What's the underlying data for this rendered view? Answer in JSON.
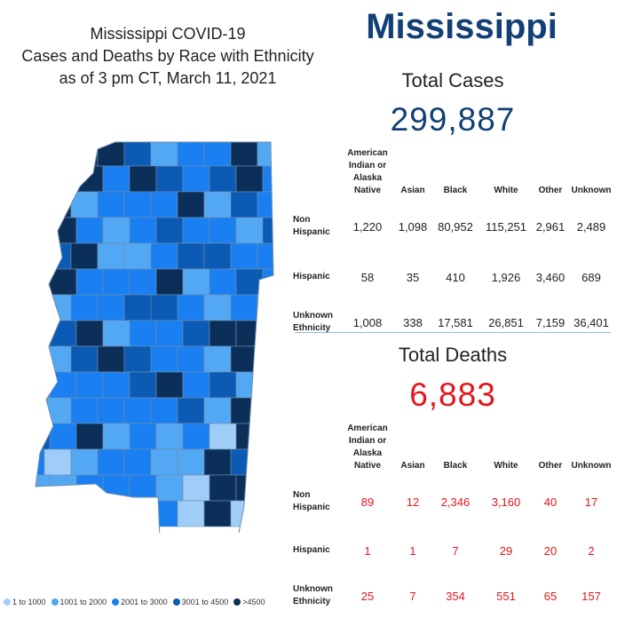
{
  "title": {
    "line1": "Mississippi COVID-19",
    "line2": "Cases and Deaths by Race with Ethnicity",
    "line3": "as of 3 pm CT, March 11, 2021"
  },
  "state_name": "Mississippi",
  "cases": {
    "label": "Total Cases",
    "total": "299,887",
    "columns": [
      "American Indian or Alaska Native",
      "Asian",
      "Black",
      "White",
      "Other",
      "Unknown"
    ],
    "rows": [
      {
        "label": "Non Hispanic",
        "values": [
          "1,220",
          "1,098",
          "80,952",
          "115,251",
          "2,961",
          "2,489"
        ]
      },
      {
        "label": "Hispanic",
        "values": [
          "58",
          "35",
          "410",
          "1,926",
          "3,460",
          "689"
        ]
      },
      {
        "label": "Unknown Ethnicity",
        "values": [
          "1,008",
          "338",
          "17,581",
          "26,851",
          "7,159",
          "36,401"
        ]
      }
    ]
  },
  "deaths": {
    "label": "Total Deaths",
    "total": "6,883",
    "columns": [
      "American Indian or Alaska Native",
      "Asian",
      "Black",
      "White",
      "Other",
      "Unknown"
    ],
    "rows": [
      {
        "label": "Non Hispanic",
        "values": [
          "89",
          "12",
          "2,346",
          "3,160",
          "40",
          "17"
        ]
      },
      {
        "label": "Hispanic",
        "values": [
          "1",
          "1",
          "7",
          "29",
          "20",
          "2"
        ]
      },
      {
        "label": "Unknown Ethnicity",
        "values": [
          "25",
          "7",
          "354",
          "551",
          "65",
          "157"
        ]
      }
    ]
  },
  "legend": [
    {
      "label": "1 to 1000",
      "color": "#9fcdf7"
    },
    {
      "label": "1001 to 2000",
      "color": "#53a8f3"
    },
    {
      "label": "2001 to 3000",
      "color": "#1a7ff0"
    },
    {
      "label": "3001 to 4500",
      "color": "#0b5ab3"
    },
    {
      "label": ">4500",
      "color": "#0c2f59"
    }
  ],
  "colors": {
    "cases_total": "#123f75",
    "deaths_total": "#e3161c",
    "state_name": "#123f75",
    "county_border": "#6f8fae"
  }
}
